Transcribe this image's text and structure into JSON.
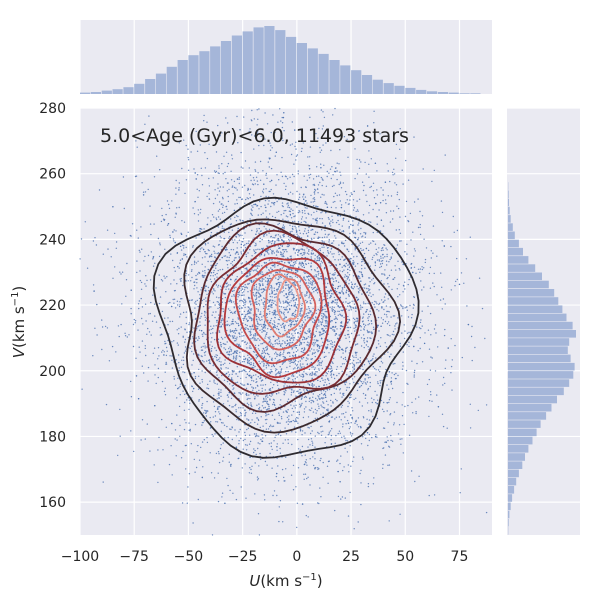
{
  "chart_data": {
    "type": "scatter",
    "annotation": "5.0<Age (Gyr)<6.0, 11493 stars",
    "xlabel_var": "U",
    "ylabel_var": "V",
    "unit_main": "(km s",
    "unit_exp": "−1",
    "unit_close": ")",
    "xlim": [
      -100,
      90
    ],
    "ylim": [
      150,
      280
    ],
    "xticks": [
      -100,
      -75,
      -50,
      -25,
      0,
      25,
      50,
      75
    ],
    "xtick_labels": [
      "−100",
      "−75",
      "−50",
      "−25",
      "0",
      "25",
      "50",
      "75"
    ],
    "yticks": [
      160,
      180,
      200,
      220,
      240,
      260,
      280
    ],
    "ytick_labels": [
      "160",
      "180",
      "200",
      "220",
      "240",
      "260",
      "280"
    ],
    "grid": true,
    "scatter": {
      "n_points": 11493,
      "center": [
        -5,
        218
      ],
      "spread": [
        28,
        22
      ],
      "color": "#4c72b0"
    },
    "marginal_x": {
      "bin_width": 5,
      "bins_start": -100,
      "counts": [
        2,
        3,
        5,
        7,
        10,
        15,
        22,
        30,
        40,
        50,
        57,
        63,
        70,
        78,
        86,
        92,
        98,
        100,
        94,
        84,
        75,
        67,
        59,
        50,
        42,
        35,
        28,
        21,
        16,
        12,
        9,
        6,
        4,
        3,
        2,
        1,
        1,
        0
      ]
    },
    "marginal_y": {
      "bin_width": 2.5,
      "bins_start": 150,
      "counts": [
        0.5,
        1,
        2,
        4,
        6,
        9,
        12,
        16,
        21,
        25,
        30,
        36,
        42,
        48,
        56,
        64,
        72,
        82,
        90,
        96,
        98,
        92,
        88,
        90,
        100,
        95,
        86,
        80,
        74,
        68,
        60,
        50,
        40,
        30,
        22,
        16,
        10,
        7,
        4,
        2.5,
        1.5,
        1,
        0.5
      ]
    },
    "contours": [
      {
        "rx": 58,
        "ry": 39,
        "cx": -5,
        "cy": 214,
        "color": "#2e2b30"
      },
      {
        "rx": 48,
        "ry": 32,
        "cx": -6,
        "cy": 215,
        "color": "#3a2a2e"
      },
      {
        "rx": 41,
        "ry": 27,
        "cx": -7,
        "cy": 216,
        "color": "#5a2a30"
      },
      {
        "rx": 35,
        "ry": 24,
        "cx": -7,
        "cy": 216,
        "color": "#7a2c32"
      },
      {
        "rx": 29,
        "ry": 21,
        "cx": -7,
        "cy": 217,
        "color": "#9a3036"
      },
      {
        "rx": 24,
        "ry": 18,
        "cx": -8,
        "cy": 217,
        "color": "#b3393d"
      },
      {
        "rx": 19,
        "ry": 15,
        "cx": -8,
        "cy": 218,
        "color": "#c44a4a"
      },
      {
        "rx": 14,
        "ry": 12,
        "cx": -7,
        "cy": 219,
        "color": "#d4605c"
      },
      {
        "rx": 9,
        "ry": 9,
        "cx": -6,
        "cy": 220,
        "color": "#e07c72"
      },
      {
        "rx": 5,
        "ry": 6,
        "cx": -4,
        "cy": 221,
        "color": "#eb988c"
      }
    ],
    "colors": {
      "bg": "#eaeaf2",
      "grid": "#ffffff",
      "hist": "#a5b6d9"
    }
  }
}
